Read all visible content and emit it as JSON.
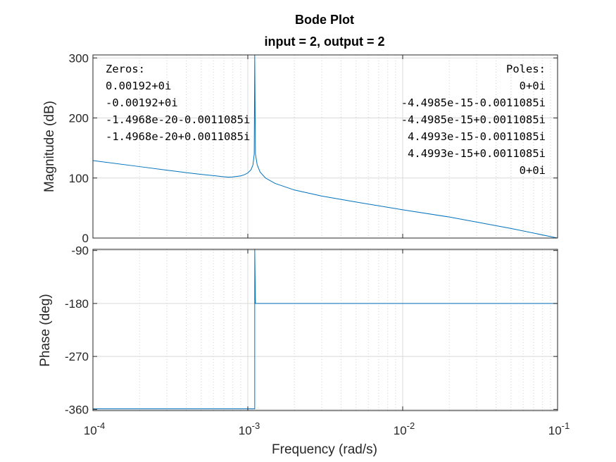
{
  "chart_data": {
    "type": "line",
    "title": "Bode Plot",
    "subtitle": "input = 2, output = 2",
    "xlabel": "Frequency  (rad/s)",
    "xscale": "log",
    "xlim": [
      0.0001,
      0.1
    ],
    "xticks": [
      {
        "base": "10",
        "exp": "-4"
      },
      {
        "base": "10",
        "exp": "-3"
      },
      {
        "base": "10",
        "exp": "-2"
      },
      {
        "base": "10",
        "exp": "-1"
      }
    ],
    "grid": true,
    "colors": {
      "line": "#0072BD",
      "axes": "#262626",
      "grid": "#d9d9d9"
    },
    "panels": [
      {
        "id": "magnitude",
        "ylabel": "Magnitude (dB)",
        "ylim": [
          0,
          305
        ],
        "yticks": [
          "0",
          "100",
          "200",
          "300"
        ],
        "ytick_values": [
          0,
          100,
          200,
          300
        ],
        "series": [
          {
            "x": [
              0.0001,
              0.0002,
              0.0003,
              0.0004,
              0.0005,
              0.0006,
              0.0007,
              0.00075,
              0.0008,
              0.0009,
              0.00095,
              0.001,
              0.00105,
              0.00108,
              0.0011,
              0.0011085,
              0.0011085,
              0.00112,
              0.00115,
              0.0012,
              0.0013,
              0.0015,
              0.002,
              0.003,
              0.005,
              0.01,
              0.02,
              0.05,
              0.1
            ],
            "y": [
              129,
              119,
              113,
              109,
              106,
              104,
              102,
              101.5,
              101.8,
              103.5,
              105.5,
              108.5,
              114,
              122,
              140,
              305,
              305,
              140,
              122,
              110,
              100,
              91,
              80,
              70,
              60,
              47,
              35,
              16,
              0
            ]
          }
        ]
      },
      {
        "id": "phase",
        "ylabel": "Phase (deg)",
        "ylim": [
          -362,
          -88
        ],
        "yticks": [
          "-90",
          "-180",
          "-270",
          "-360"
        ],
        "ytick_values": [
          -90,
          -180,
          -270,
          -360
        ],
        "series": [
          {
            "x": [
              0.0001,
              0.00108,
              0.0011085,
              0.0011085,
              0.00112,
              0.1
            ],
            "y": [
              -359,
              -359,
              -359,
              -88,
              -180,
              -180
            ]
          }
        ]
      }
    ],
    "annotations": {
      "zeros_title": "Zeros:",
      "zeros": [
        "0.00192+0i",
        "-0.00192+0i",
        "-1.4968e-20-0.0011085i",
        "-1.4968e-20+0.0011085i"
      ],
      "poles_title": "Poles:",
      "poles": [
        "0+0i",
        "-4.4985e-15-0.0011085i",
        "-4.4985e-15+0.0011085i",
        "4.4993e-15-0.0011085i",
        "4.4993e-15+0.0011085i",
        "0+0i"
      ]
    }
  }
}
